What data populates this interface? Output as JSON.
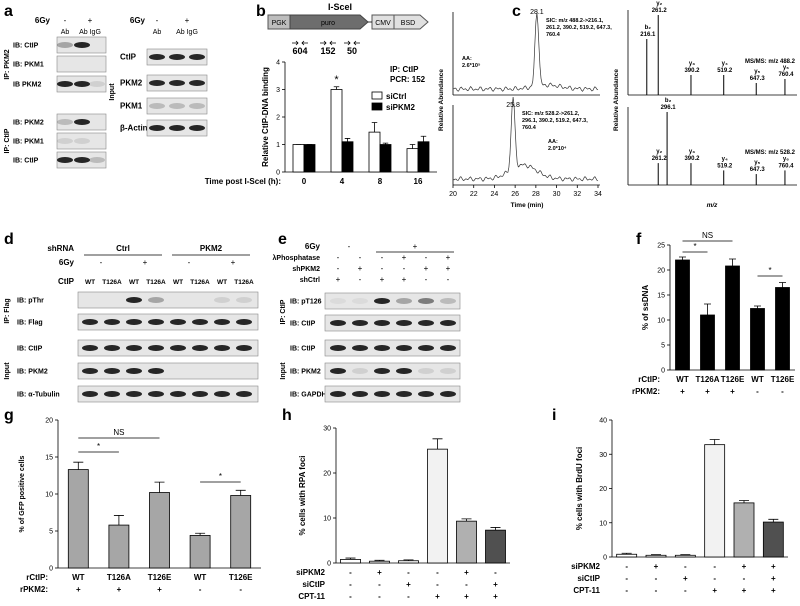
{
  "panels": [
    "a",
    "b",
    "c",
    "d",
    "e",
    "f",
    "g",
    "h",
    "i"
  ],
  "blot_a": {
    "left": {
      "gy_label": "6Gy",
      "gy": [
        "-",
        "+"
      ],
      "ab": [
        "Ab",
        "Ab IgG"
      ],
      "groups": [
        {
          "label": "IP: PKM2",
          "rows": [
            "IB: CtIP",
            "IB: PKM1",
            "IB PKM2"
          ]
        },
        {
          "label": "IP: CtIP",
          "rows": [
            "IB: PKM2",
            "IB: PKM1",
            "IB: CtIP"
          ]
        }
      ]
    },
    "right": {
      "gy_label": "6Gy",
      "gy": [
        "-",
        "+"
      ],
      "ab": [
        "Ab",
        "Ab IgG"
      ],
      "label": "Input",
      "rows": [
        "CtIP",
        "PKM2",
        "PKM1",
        "β-Actin"
      ]
    }
  },
  "schematic_b": {
    "title": "I-SceI",
    "elements": [
      "PGK",
      "puro",
      "CMV",
      "BSD"
    ],
    "primers": [
      604,
      152,
      50
    ]
  },
  "ms_c": {
    "chromatogram": {
      "ylabel": "Relative Abundance",
      "xlabel": "Time (min)",
      "xlim": [
        20,
        34
      ],
      "xticks": [
        20,
        22,
        24,
        26,
        28,
        30,
        32,
        34
      ],
      "traces": [
        {
          "peak": 28.1,
          "sic": [
            "SIC: m/z 488.2->216.1,",
            "261.2, 390.2, 519.2, 647.3,",
            "760.4"
          ],
          "area": [
            "AA:",
            "2.6*10⁵"
          ]
        },
        {
          "peak": 25.8,
          "sic": [
            "SIC: m/z 528.2->261.2,",
            "296.1, 390.2, 519.2, 647.3,",
            "760.4"
          ],
          "area": [
            "AA:",
            "2.0*10⁴"
          ]
        }
      ]
    },
    "spectra": {
      "ylabel": "Relative Abundance",
      "xlabel": "m/z",
      "xlim": [
        150,
        800
      ],
      "ylim": [
        0,
        100
      ],
      "panels": [
        {
          "title": "MS/MS: m/z 488.2",
          "ions": [
            "b₂",
            "y₂",
            "y₃",
            "y₄",
            "y₅",
            "y₆"
          ],
          "mz": [
            216.1,
            261.2,
            390.2,
            519.2,
            647.3,
            760.4
          ],
          "heights": [
            70,
            100,
            25,
            25,
            15,
            20
          ]
        },
        {
          "title": "MS/MS: m/z 528.2",
          "ions": [
            "y₂",
            "b₂",
            "y₃",
            "y₄",
            "y₅",
            "y₆"
          ],
          "mz": [
            261.2,
            296.1,
            390.2,
            519.2,
            647.3,
            760.4
          ],
          "heights": [
            30,
            100,
            30,
            20,
            15,
            20
          ]
        }
      ]
    }
  },
  "blot_d": {
    "shrna_label": "shRNA",
    "shrna": [
      "Ctrl",
      "PKM2"
    ],
    "gy_label": "6Gy",
    "gy": [
      "-",
      "+",
      "-",
      "+"
    ],
    "ctip_label": "CtIP",
    "ctip": [
      "WT",
      "T126A",
      "WT",
      "T126A",
      "WT",
      "T126A",
      "WT",
      "T126A"
    ],
    "groups": [
      {
        "label": "IP: Flag",
        "rows": [
          "IB: pThr",
          "IB: Flag"
        ]
      },
      {
        "label": "Input",
        "rows": [
          "IB: CtIP",
          "IB: PKM2",
          "IB: α-Tubulin"
        ]
      }
    ]
  },
  "blot_e": {
    "gy_label": "6Gy",
    "gy": [
      "-",
      "+"
    ],
    "conditions": [
      {
        "label": "λPhosphatase",
        "values": [
          "-",
          "-",
          "-",
          "+",
          "-",
          "+"
        ]
      },
      {
        "label": "shPKM2",
        "values": [
          "-",
          "+",
          "-",
          "-",
          "+",
          "+"
        ]
      },
      {
        "label": "shCtrl",
        "values": [
          "+",
          "-",
          "+",
          "+",
          "-",
          "-"
        ]
      }
    ],
    "groups": [
      {
        "label": "IP: CtIP",
        "rows": [
          "IB: pT126",
          "IB: CtIP"
        ]
      },
      {
        "label": "Input",
        "rows": [
          "IB: CtIP",
          "IB: PKM2",
          "IB: GAPDH"
        ]
      }
    ]
  },
  "chart_data": [
    {
      "type": "bar",
      "ylabel": "Relative CtIP-DNA binding",
      "xlabel": "Time post I-SceI (h):",
      "categories": [
        "0",
        "4",
        "8",
        "16"
      ],
      "series": [
        {
          "name": "siCtrl",
          "color": "#ffffff",
          "values": [
            1,
            3.0,
            1.45,
            0.85
          ],
          "errors": [
            0,
            0.1,
            0.35,
            0.15
          ]
        },
        {
          "name": "siPKM2",
          "color": "#000000",
          "values": [
            1,
            1.1,
            1.0,
            1.1
          ],
          "errors": [
            0,
            0.12,
            0.05,
            0.2
          ]
        }
      ],
      "ylim": [
        0,
        4
      ],
      "yticks": [
        0,
        1,
        2,
        3,
        4
      ],
      "annotations": [
        "IP: CtIP",
        "PCR: 152",
        "*"
      ]
    },
    {
      "type": "bar",
      "ylabel": "% of ssDNA",
      "rows": [
        {
          "label": "rCtIP:",
          "values": [
            "WT",
            "T126A",
            "T126E",
            "WT",
            "T126E"
          ]
        },
        {
          "label": "rPKM2:",
          "values": [
            "+",
            "+",
            "+",
            "-",
            "-"
          ]
        }
      ],
      "values": [
        22,
        11,
        20.8,
        12.3,
        16.5
      ],
      "errors": [
        0.6,
        2.2,
        1.4,
        0.5,
        1.0
      ],
      "color": "#000000",
      "ylim": [
        0,
        25
      ],
      "yticks": [
        0,
        5,
        10,
        15,
        20,
        25
      ],
      "annotations": [
        "NS",
        "*",
        "*"
      ]
    },
    {
      "type": "bar",
      "ylabel": "% of GFP positive cells",
      "rows": [
        {
          "label": "rCtIP:",
          "values": [
            "WT",
            "T126A",
            "T126E",
            "WT",
            "T126E"
          ]
        },
        {
          "label": "rPKM2:",
          "values": [
            "+",
            "+",
            "+",
            "-",
            "-"
          ]
        }
      ],
      "values": [
        13.3,
        5.8,
        10.2,
        4.4,
        9.8
      ],
      "errors": [
        1.0,
        1.3,
        1.4,
        0.3,
        0.7
      ],
      "color": "#a6a6a6",
      "ylim": [
        0,
        20
      ],
      "yticks": [
        0,
        5,
        10,
        15,
        20
      ],
      "annotations": [
        "NS",
        "*",
        "*"
      ]
    },
    {
      "type": "bar",
      "ylabel": "% cells with RPA foci",
      "rows": [
        {
          "label": "siPKM2",
          "values": [
            "-",
            "+",
            "-",
            "-",
            "+",
            "-"
          ]
        },
        {
          "label": "siCtIP",
          "values": [
            "-",
            "-",
            "+",
            "-",
            "-",
            "+"
          ]
        },
        {
          "label": "CPT-11",
          "values": [
            "-",
            "-",
            "-",
            "+",
            "+",
            "+"
          ]
        }
      ],
      "values": [
        0.8,
        0.4,
        0.5,
        25.3,
        9.3,
        7.3
      ],
      "errors": [
        0.3,
        0.2,
        0.2,
        2.3,
        0.5,
        0.6
      ],
      "colors": [
        "#ffffff",
        "#ffffff",
        "#ffffff",
        "#f2f2f2",
        "#b0b0b0",
        "#505050"
      ],
      "ylim": [
        0,
        30
      ],
      "yticks": [
        0,
        10,
        20,
        30
      ]
    },
    {
      "type": "bar",
      "ylabel": "% cells with BrdU foci",
      "rows": [
        {
          "label": "siPKM2",
          "values": [
            "-",
            "+",
            "-",
            "-",
            "+",
            "+"
          ]
        },
        {
          "label": "siCtIP",
          "values": [
            "-",
            "-",
            "+",
            "-",
            "-",
            "+"
          ]
        },
        {
          "label": "CPT-11",
          "values": [
            "-",
            "-",
            "-",
            "+",
            "+",
            "+"
          ]
        }
      ],
      "values": [
        0.8,
        0.5,
        0.5,
        32.8,
        15.8,
        10.2
      ],
      "errors": [
        0.3,
        0.2,
        0.2,
        1.5,
        0.7,
        0.8
      ],
      "colors": [
        "#ffffff",
        "#ffffff",
        "#ffffff",
        "#f2f2f2",
        "#b0b0b0",
        "#505050"
      ],
      "ylim": [
        0,
        40
      ],
      "yticks": [
        0,
        10,
        20,
        30,
        40
      ]
    }
  ]
}
